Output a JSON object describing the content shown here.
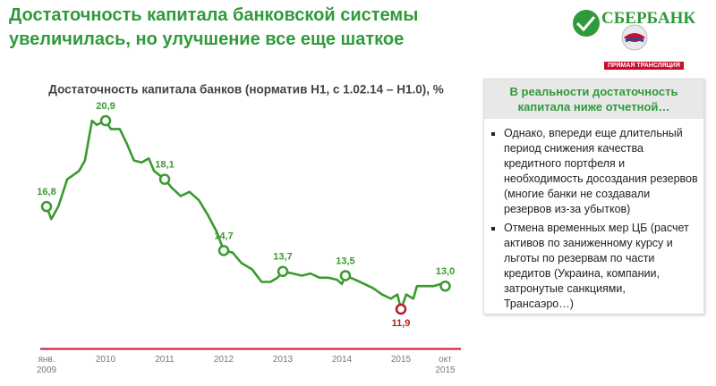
{
  "header": {
    "title": "Достаточность капитала банковской системы увеличилась, но улучшение все еще шаткое",
    "logo": "СБЕРБАНК",
    "live_badge": "ПРЯМАЯ ТРАНСЛЯЦИЯ"
  },
  "chart_data": {
    "type": "line",
    "title": "Достаточность капитала банков (норматив Н1, с 1.02.14 – Н1.0), %",
    "color": "#3a9a2e",
    "min_color": "#b0202a",
    "x": [
      2009.0,
      2009.08,
      2009.2,
      2009.35,
      2009.55,
      2009.65,
      2009.77,
      2009.85,
      2010.0,
      2010.09,
      2010.24,
      2010.36,
      2010.48,
      2010.61,
      2010.73,
      2010.82,
      2011.0,
      2011.12,
      2011.27,
      2011.42,
      2011.58,
      2011.73,
      2011.88,
      2012.0,
      2012.15,
      2012.3,
      2012.48,
      2012.64,
      2012.79,
      2012.91,
      2013.0,
      2013.17,
      2013.32,
      2013.47,
      2013.62,
      2013.77,
      2013.92,
      2014.0,
      2014.06,
      2014.23,
      2014.38,
      2014.53,
      2014.68,
      2014.83,
      2014.94,
      2015.0,
      2015.09,
      2015.21,
      2015.27,
      2015.39,
      2015.55,
      2015.67,
      2015.75
    ],
    "values": [
      16.8,
      16.2,
      16.8,
      18.1,
      18.5,
      19.0,
      20.9,
      20.7,
      20.9,
      20.5,
      20.5,
      19.8,
      19.0,
      18.9,
      19.1,
      18.5,
      18.1,
      17.7,
      17.3,
      17.5,
      17.1,
      16.4,
      15.6,
      14.7,
      14.6,
      14.1,
      13.8,
      13.2,
      13.2,
      13.4,
      13.7,
      13.6,
      13.5,
      13.6,
      13.4,
      13.4,
      13.3,
      13.1,
      13.5,
      13.3,
      13.1,
      12.9,
      12.6,
      12.4,
      12.6,
      11.9,
      12.6,
      12.4,
      13.0,
      13.0,
      13.0,
      13.1,
      13.0
    ],
    "value_labels": [
      "16,8",
      null,
      null,
      null,
      null,
      null,
      null,
      null,
      "20,9",
      null,
      null,
      null,
      null,
      null,
      null,
      null,
      "18,1",
      null,
      null,
      null,
      null,
      null,
      null,
      "14,7",
      null,
      null,
      null,
      null,
      null,
      null,
      "13,7",
      null,
      null,
      null,
      null,
      null,
      null,
      null,
      "13,5",
      null,
      null,
      null,
      null,
      null,
      null,
      "11,9",
      null,
      null,
      null,
      null,
      null,
      null,
      "13,0"
    ],
    "xlim": [
      2009,
      2015.75
    ],
    "xticks": [
      {
        "value": 2009,
        "label": "янв. 2009"
      },
      2010,
      2011,
      2012,
      2013,
      2014,
      2015,
      {
        "value": 2015.75,
        "label": "окт 2015"
      }
    ],
    "ylim": [
      10,
      21.5
    ],
    "reference_line": {
      "value": 10,
      "color": "#c8102e"
    }
  },
  "panel": {
    "heading": "В реальности достаточность капитала ниже отчетной…",
    "bullets": [
      "Однако, впереди еще длительный период снижения качества кредитного портфеля и необходимость досоздания резервов (многие банки не создавали резервов из-за убытков)",
      "Отмена временных мер ЦБ (расчет активов по заниженному курсу и льготы по резервам по части кредитов (Украина, компании, затронутые санкциями, Трансаэро…)"
    ]
  }
}
